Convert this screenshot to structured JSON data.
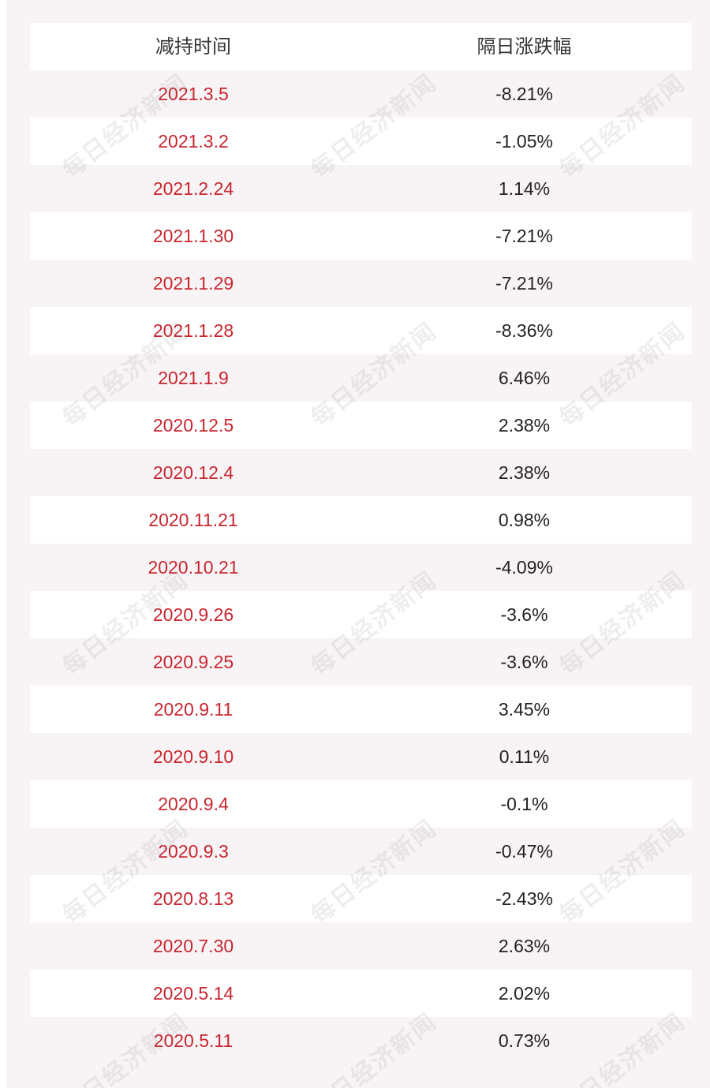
{
  "table": {
    "headers": {
      "date": "减持时间",
      "change": "隔日涨跌幅"
    },
    "rows": [
      {
        "date": "2021.3.5",
        "change": "-8.21%"
      },
      {
        "date": "2021.3.2",
        "change": "-1.05%"
      },
      {
        "date": "2021.2.24",
        "change": "1.14%"
      },
      {
        "date": "2021.1.30",
        "change": "-7.21%"
      },
      {
        "date": "2021.1.29",
        "change": "-7.21%"
      },
      {
        "date": "2021.1.28",
        "change": "-8.36%"
      },
      {
        "date": "2021.1.9",
        "change": "6.46%"
      },
      {
        "date": "2020.12.5",
        "change": "2.38%"
      },
      {
        "date": "2020.12.4",
        "change": "2.38%"
      },
      {
        "date": "2020.11.21",
        "change": "0.98%"
      },
      {
        "date": "2020.10.21",
        "change": "-4.09%"
      },
      {
        "date": "2020.9.26",
        "change": "-3.6%"
      },
      {
        "date": "2020.9.25",
        "change": "-3.6%"
      },
      {
        "date": "2020.9.11",
        "change": "3.45%"
      },
      {
        "date": "2020.9.10",
        "change": "0.11%"
      },
      {
        "date": "2020.9.4",
        "change": "-0.1%"
      },
      {
        "date": "2020.9.3",
        "change": "-0.47%"
      },
      {
        "date": "2020.8.13",
        "change": "-2.43%"
      },
      {
        "date": "2020.7.30",
        "change": "2.63%"
      },
      {
        "date": "2020.5.14",
        "change": "2.02%"
      },
      {
        "date": "2020.5.11",
        "change": "0.73%"
      }
    ]
  },
  "watermark": {
    "text": "每日经济新闻"
  },
  "colors": {
    "date_text": "#c8262f",
    "change_text": "#222222",
    "panel_bg": "#f8f4f5",
    "row_white": "#ffffff"
  }
}
